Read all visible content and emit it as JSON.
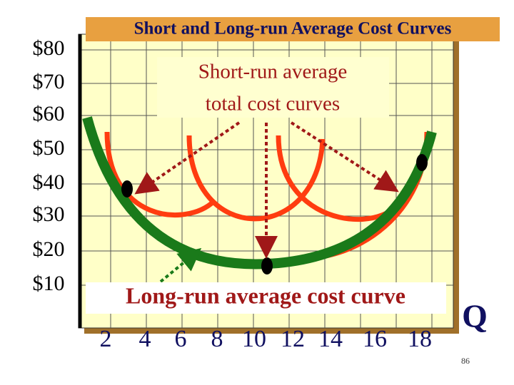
{
  "header": {
    "title": "Short and Long-run Average Cost Curves"
  },
  "y_axis": {
    "labels": [
      "$80",
      "$70",
      "$60",
      "$50",
      "$40",
      "$30",
      "$20",
      "$10"
    ]
  },
  "x_axis": {
    "labels": [
      "2",
      "4",
      "6",
      "8",
      "10",
      "12",
      "14",
      "16",
      "18"
    ],
    "title": "Q"
  },
  "annotations": {
    "short_run": [
      "Short-run average",
      "total cost curves"
    ],
    "long_run": "Long-run average cost curve"
  },
  "footer": {
    "page": "86"
  }
}
